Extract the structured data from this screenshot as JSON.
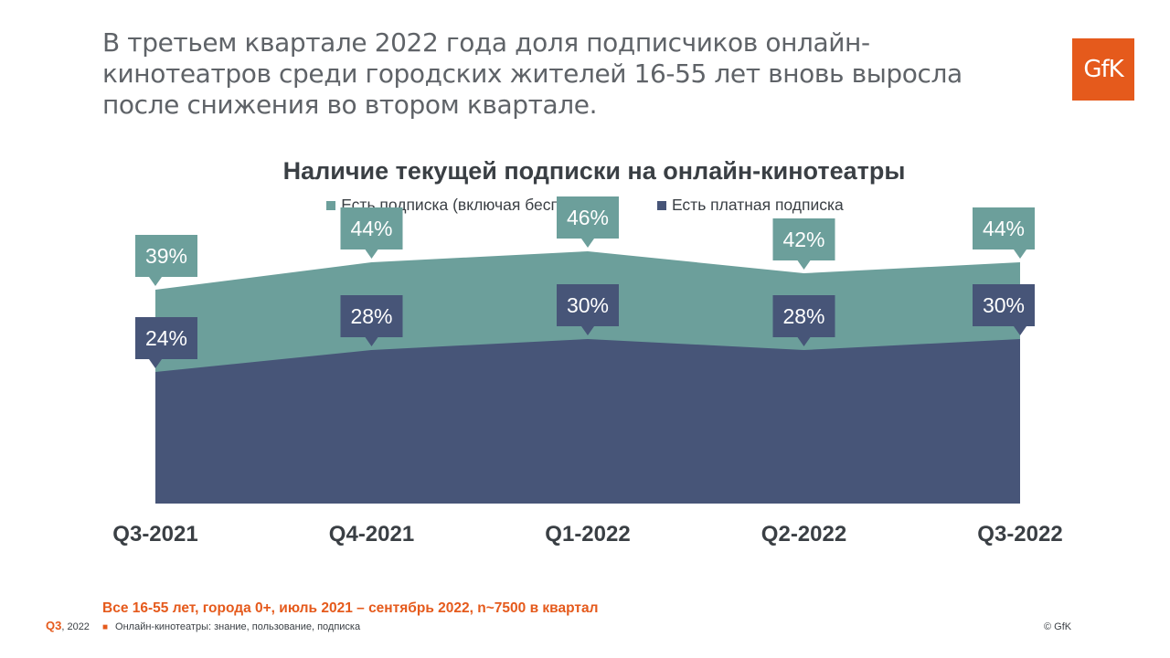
{
  "headline": "В третьем квартале 2022 года доля подписчиков онлайн-кинотеатров среди городских жителей 16-55 лет вновь выросла после снижения во втором квартале.",
  "logo_text": "GfK",
  "colors": {
    "any_subscription": "#6c9f9b",
    "paid_subscription": "#475578",
    "accent": "#e55a1c",
    "text": "#3a3f44"
  },
  "chart_data": {
    "type": "area",
    "title": "Наличие текущей подписки на онлайн-кинотеатры",
    "categories": [
      "Q3-2021",
      "Q4-2021",
      "Q1-2022",
      "Q2-2022",
      "Q3-2022"
    ],
    "series": [
      {
        "name": "Есть подписка (включая бесплатную)",
        "values": [
          39,
          44,
          46,
          42,
          44
        ],
        "labels": [
          "39%",
          "44%",
          "46%",
          "42%",
          "44%"
        ]
      },
      {
        "name": "Есть платная подписка",
        "values": [
          24,
          28,
          30,
          28,
          30
        ],
        "labels": [
          "24%",
          "28%",
          "30%",
          "28%",
          "30%"
        ]
      }
    ],
    "ylim": [
      0,
      60
    ],
    "grid": false,
    "legend_position": "top-center"
  },
  "footnote": "Все 16-55 лет, города 0+, июль 2021 – сентябрь 2022, n~7500 в квартал",
  "source_text": "Онлайн-кинотеатры: знание, пользование, подписка",
  "period_quarter": "Q3",
  "period_year": ", 2022",
  "copyright": "© GfK"
}
